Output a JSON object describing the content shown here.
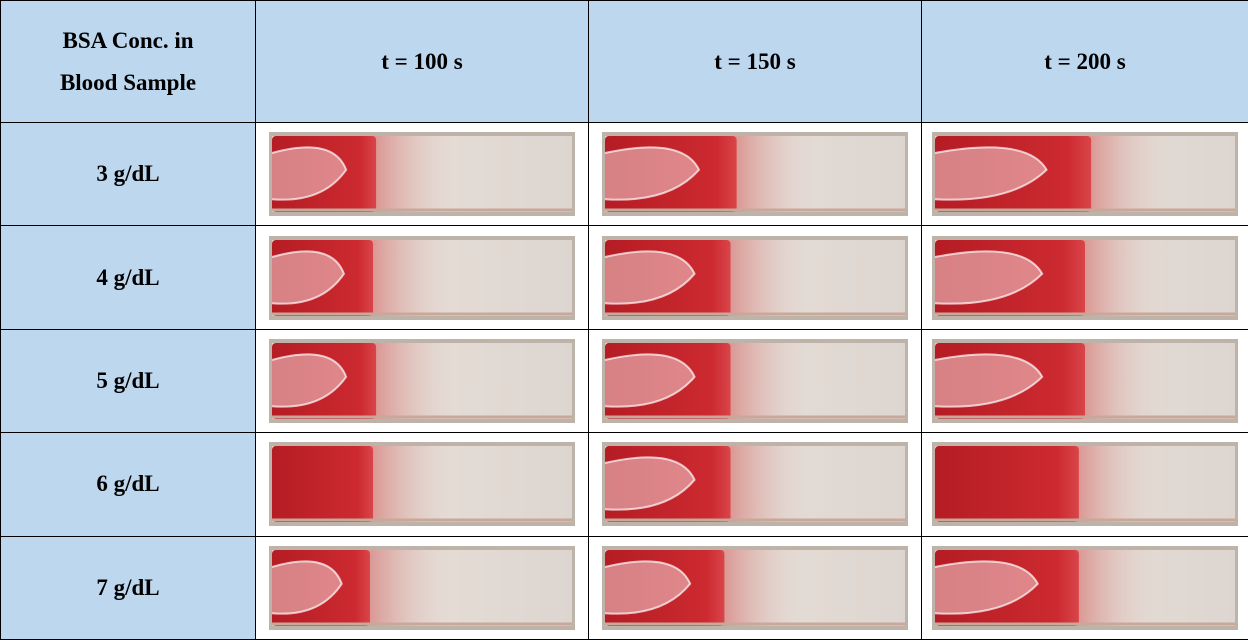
{
  "table": {
    "header": [
      [
        "BSA Conc. in",
        "Blood Sample"
      ],
      "t = 100 s",
      "t = 150 s",
      "t = 200 s"
    ],
    "rows": [
      "3 g/dL",
      "4 g/dL",
      "5 g/dL",
      "6 g/dL",
      "7 g/dL"
    ]
  }
}
